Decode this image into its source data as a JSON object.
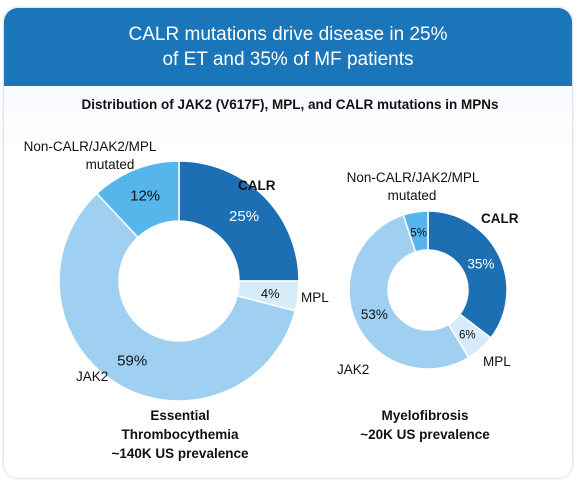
{
  "header": {
    "line1": "CALR mutations drive disease in 25%",
    "line2": "of ET and 35% of MF patients"
  },
  "subtitle": "Distribution of JAK2 (V617F), MPL, and CALR mutations in MPNs",
  "colors": {
    "header_bg": "#1a75b9",
    "CALR": "#1c6fb3",
    "MPL": "#d7ecf9",
    "JAK2": "#9fd0f2",
    "Non-CALR/JAK2/MPL mutated": "#56b6ec"
  },
  "chart_data": [
    {
      "type": "pie",
      "variant": "donut",
      "caption": [
        "Essential",
        "Thrombocythemia",
        "~140K US prevalence"
      ],
      "slices": [
        {
          "name": "CALR",
          "value": 25,
          "label": "25%"
        },
        {
          "name": "MPL",
          "value": 4,
          "label": "4%"
        },
        {
          "name": "JAK2",
          "value": 59,
          "label": "59%"
        },
        {
          "name": "Non-CALR/JAK2/MPL mutated",
          "value": 12,
          "label": "12%"
        }
      ]
    },
    {
      "type": "pie",
      "variant": "donut",
      "caption": [
        "Myelofibrosis",
        "~20K US prevalence"
      ],
      "slices": [
        {
          "name": "CALR",
          "value": 35,
          "label": "35%"
        },
        {
          "name": "MPL",
          "value": 6,
          "label": "6%"
        },
        {
          "name": "JAK2",
          "value": 53,
          "label": "53%"
        },
        {
          "name": "Non-CALR/JAK2/MPL mutated",
          "value": 5,
          "label": "5%"
        }
      ]
    }
  ],
  "category_labels": {
    "CALR": "CALR",
    "MPL": "MPL",
    "JAK2": "JAK2",
    "other_line1": "Non-CALR/JAK2/MPL",
    "other_line2": "mutated"
  }
}
